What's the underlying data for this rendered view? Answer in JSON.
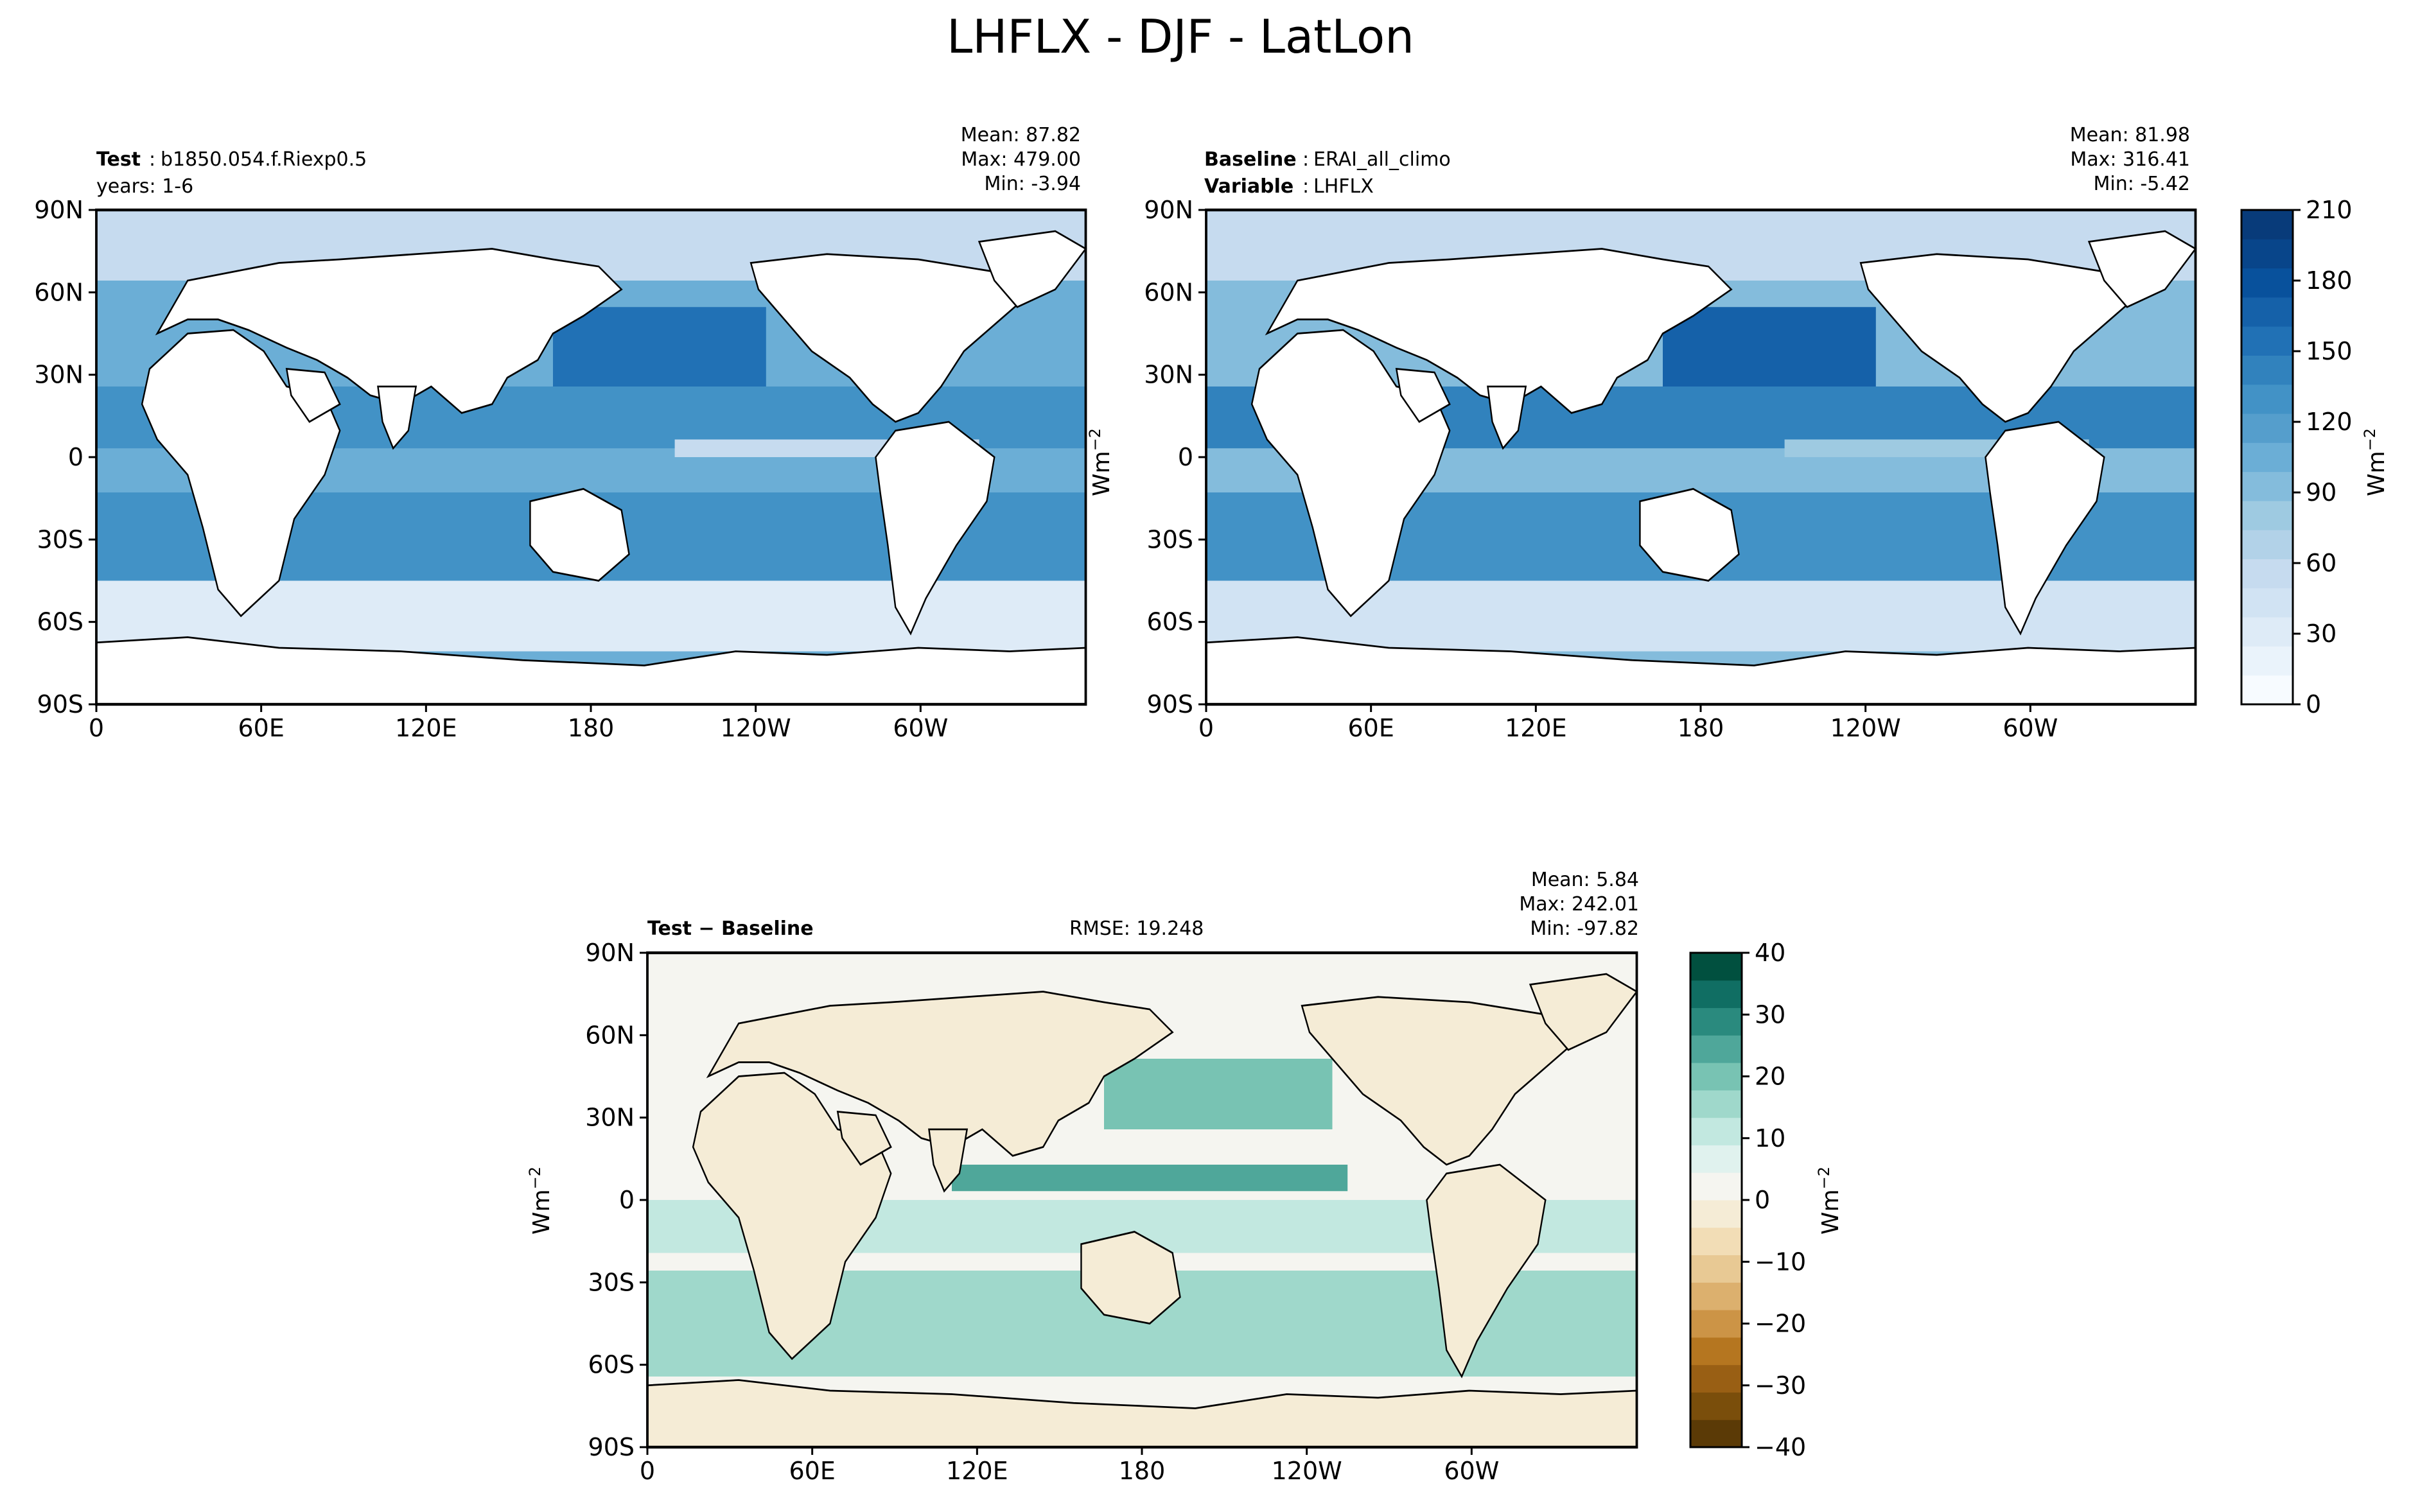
{
  "figure": {
    "title": "LHFLX - DJF - LatLon"
  },
  "colors": {
    "blues": [
      "#f7fbff",
      "#eaf3fb",
      "#deebf7",
      "#d1e3f3",
      "#c6dbef",
      "#b2d2e8",
      "#9ecae1",
      "#84bcdc",
      "#6baed6",
      "#559ecc",
      "#4292c6",
      "#3182bd",
      "#2171b5",
      "#1561a9",
      "#08519c",
      "#08458a",
      "#083b7a"
    ],
    "brbg": [
      "#5b3a06",
      "#7a4e0b",
      "#995f14",
      "#b57620",
      "#cc9446",
      "#dcb06e",
      "#e8c994",
      "#f2ddb6",
      "#f5ecd6",
      "#f5f5f0",
      "#e0f2ee",
      "#c2e8e0",
      "#9fd8cb",
      "#78c3b3",
      "#4fa79a",
      "#2a8a7e",
      "#106e63",
      "#01503f"
    ],
    "land": "#ffffff",
    "coast": "#000000"
  },
  "axis_labels": {
    "lat_ticks": [
      "90N",
      "60N",
      "30N",
      "0",
      "30S",
      "60S",
      "90S"
    ],
    "lon_ticks": [
      "0",
      "60E",
      "120E",
      "180",
      "120W",
      "60W"
    ]
  },
  "panels": {
    "test": {
      "label_bold": "Test",
      "label_sep": ":",
      "label_value": "b1850.054.f.Riexp0.5",
      "label_line2": "years: 1-6",
      "stats": [
        "Mean: 87.82",
        "Max: 479.00",
        "Min: -3.94"
      ]
    },
    "baseline": {
      "label_bold": "Baseline",
      "label_sep": ":",
      "label_value": "ERAI_all_climo",
      "label2_bold": "Variable",
      "label2_value": "LHFLX",
      "stats": [
        "Mean: 81.98",
        "Max: 316.41",
        "Min: -5.42"
      ]
    },
    "diff": {
      "label": "Test − Baseline",
      "rmse": "RMSE: 19.248",
      "stats": [
        "Mean:  5.84",
        "Max: 242.01",
        "Min: -97.82"
      ]
    }
  },
  "colorbars": {
    "top": {
      "unit": "Wm",
      "unit_sup": "−2",
      "ticks": [
        "210",
        "180",
        "150",
        "120",
        "90",
        "60",
        "30",
        "0"
      ]
    },
    "diff": {
      "unit": "Wm",
      "unit_sup": "−2",
      "ticks": [
        "40",
        "30",
        "20",
        "10",
        "0",
        "−10",
        "−20",
        "−30",
        "−40"
      ]
    }
  },
  "ylabel_between": {
    "unit": "Wm",
    "unit_sup": "−2"
  },
  "ylabel_diff": {
    "unit": "Wm",
    "unit_sup": "−2"
  },
  "chart_data": [
    {
      "type": "heatmap",
      "title": "Test : b1850.054.f.Riexp0.5  years: 1-6",
      "variable": "LHFLX",
      "season": "DJF",
      "projection": "LatLon",
      "x_ticks": [
        "0",
        "60E",
        "120E",
        "180",
        "120W",
        "60W"
      ],
      "y_ticks": [
        "90N",
        "60N",
        "30N",
        "0",
        "30S",
        "60S",
        "90S"
      ],
      "xlim": [
        0,
        360
      ],
      "ylim": [
        -90,
        90
      ],
      "stats": {
        "mean": 87.82,
        "max": 479.0,
        "min": -3.94
      },
      "colorbar": {
        "min": 0,
        "max": 210,
        "ticks": [
          0,
          30,
          60,
          90,
          120,
          150,
          180,
          210
        ],
        "unit": "Wm-2"
      }
    },
    {
      "type": "heatmap",
      "title": "Baseline : ERAI_all_climo  Variable : LHFLX",
      "variable": "LHFLX",
      "season": "DJF",
      "projection": "LatLon",
      "x_ticks": [
        "0",
        "60E",
        "120E",
        "180",
        "120W",
        "60W"
      ],
      "y_ticks": [
        "90N",
        "60N",
        "30N",
        "0",
        "30S",
        "60S",
        "90S"
      ],
      "xlim": [
        0,
        360
      ],
      "ylim": [
        -90,
        90
      ],
      "stats": {
        "mean": 81.98,
        "max": 316.41,
        "min": -5.42
      },
      "colorbar": {
        "min": 0,
        "max": 210,
        "ticks": [
          0,
          30,
          60,
          90,
          120,
          150,
          180,
          210
        ],
        "unit": "Wm-2"
      }
    },
    {
      "type": "heatmap",
      "title": "Test − Baseline",
      "variable": "LHFLX",
      "season": "DJF",
      "projection": "LatLon",
      "x_ticks": [
        "0",
        "60E",
        "120E",
        "180",
        "120W",
        "60W"
      ],
      "y_ticks": [
        "90N",
        "60N",
        "30N",
        "0",
        "30S",
        "60S",
        "90S"
      ],
      "xlim": [
        0,
        360
      ],
      "ylim": [
        -90,
        90
      ],
      "rmse": 19.248,
      "stats": {
        "mean": 5.84,
        "max": 242.01,
        "min": -97.82
      },
      "colorbar": {
        "min": -40,
        "max": 40,
        "ticks": [
          -40,
          -30,
          -20,
          -10,
          0,
          10,
          20,
          30,
          40
        ],
        "unit": "Wm-2"
      }
    }
  ]
}
